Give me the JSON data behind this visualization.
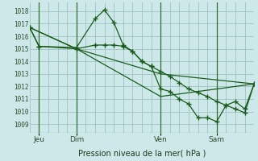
{
  "bg_color": "#cce8e8",
  "grid_color": "#99bbbb",
  "line_color": "#1a5c1a",
  "vline_color": "#2d6e2d",
  "title": "Pression niveau de la mer( hPa )",
  "ylabel_ticks": [
    1009,
    1010,
    1011,
    1012,
    1013,
    1014,
    1015,
    1016,
    1017,
    1018
  ],
  "xlim": [
    0,
    96
  ],
  "ylim": [
    1008.3,
    1018.7
  ],
  "xtick_positions": [
    4,
    20,
    56,
    80
  ],
  "xtick_labels": [
    "Jeu",
    "Dim",
    "Ven",
    "Sam"
  ],
  "vlines_x": [
    4,
    20,
    56,
    80
  ],
  "series1_x": [
    0,
    4,
    20,
    28,
    32,
    36,
    40,
    44,
    48,
    52,
    56,
    60,
    64,
    68,
    72,
    76,
    80,
    84,
    88,
    92,
    96
  ],
  "series1_y": [
    1016.7,
    1015.2,
    1015.1,
    1017.4,
    1018.1,
    1017.1,
    1015.3,
    1014.8,
    1014.0,
    1013.6,
    1011.8,
    1011.6,
    1011.0,
    1010.6,
    1009.5,
    1009.5,
    1009.2,
    1010.5,
    1010.8,
    1010.2,
    1012.2
  ],
  "series2_x": [
    0,
    4,
    20,
    28,
    32,
    36,
    40,
    44,
    48,
    52,
    56,
    60,
    64,
    68,
    72,
    76,
    80,
    84,
    88,
    92,
    96
  ],
  "series2_y": [
    1016.7,
    1015.2,
    1015.0,
    1015.3,
    1015.3,
    1015.3,
    1015.2,
    1014.8,
    1014.0,
    1013.6,
    1013.2,
    1012.8,
    1012.3,
    1011.8,
    1011.5,
    1011.2,
    1010.8,
    1010.5,
    1010.2,
    1009.9,
    1012.2
  ],
  "series3_x": [
    0,
    20,
    56,
    96
  ],
  "series3_y": [
    1016.7,
    1015.0,
    1013.0,
    1012.2
  ],
  "series4_x": [
    0,
    20,
    56,
    96
  ],
  "series4_y": [
    1016.7,
    1015.0,
    1011.2,
    1012.2
  ]
}
